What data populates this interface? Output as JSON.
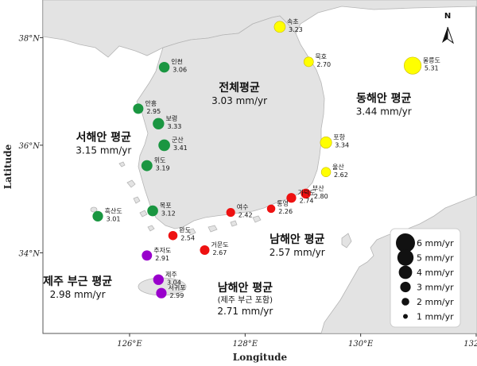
{
  "chart_data": {
    "type": "map",
    "xlabel": "Longitude",
    "ylabel": "Latitude",
    "x_range": [
      124.5,
      132.0
    ],
    "y_range": [
      32.5,
      38.7
    ],
    "x_ticks": [
      {
        "value": 126,
        "label": "126°E"
      },
      {
        "value": 128,
        "label": "128°E"
      },
      {
        "value": 130,
        "label": "130°E"
      },
      {
        "value": 132,
        "label": "132°E"
      }
    ],
    "y_ticks": [
      {
        "value": 38,
        "label": "38°N"
      },
      {
        "value": 36,
        "label": "36°N"
      },
      {
        "value": 34,
        "label": "34°N"
      }
    ],
    "north_label": "N",
    "colors": {
      "west": "#1a9641",
      "east": "#ffff00",
      "south": "#ee1111",
      "jeju": "#9900cc",
      "land": "#e3e3e3",
      "sea": "#ffffff"
    },
    "stations": [
      {
        "name": "속초",
        "value": "3.23",
        "lon": 128.6,
        "lat": 38.2,
        "region": "east"
      },
      {
        "name": "묵호",
        "value": "2.70",
        "lon": 129.1,
        "lat": 37.55,
        "region": "east"
      },
      {
        "name": "울릉도",
        "value": "5.31",
        "lon": 130.9,
        "lat": 37.48,
        "region": "east"
      },
      {
        "name": "포항",
        "value": "3.34",
        "lon": 129.4,
        "lat": 36.05,
        "region": "east"
      },
      {
        "name": "울산",
        "value": "2.62",
        "lon": 129.4,
        "lat": 35.5,
        "region": "east"
      },
      {
        "name": "인천",
        "value": "3.06",
        "lon": 126.6,
        "lat": 37.45,
        "region": "west"
      },
      {
        "name": "안흥",
        "value": "2.95",
        "lon": 126.15,
        "lat": 36.68,
        "region": "west"
      },
      {
        "name": "보령",
        "value": "3.33",
        "lon": 126.5,
        "lat": 36.4,
        "region": "west"
      },
      {
        "name": "군산",
        "value": "3.41",
        "lon": 126.6,
        "lat": 36.0,
        "region": "west"
      },
      {
        "name": "위도",
        "value": "3.19",
        "lon": 126.3,
        "lat": 35.62,
        "region": "west"
      },
      {
        "name": "흑산도",
        "value": "3.01",
        "lon": 125.45,
        "lat": 34.68,
        "region": "west"
      },
      {
        "name": "목포",
        "value": "3.12",
        "lon": 126.4,
        "lat": 34.78,
        "region": "west"
      },
      {
        "name": "부산",
        "value": "2.80",
        "lon": 129.05,
        "lat": 35.1,
        "region": "south"
      },
      {
        "name": "가덕도",
        "value": "2.74",
        "lon": 128.8,
        "lat": 35.02,
        "region": "south"
      },
      {
        "name": "통영",
        "value": "2.26",
        "lon": 128.45,
        "lat": 34.82,
        "region": "south"
      },
      {
        "name": "여수",
        "value": "2.42",
        "lon": 127.75,
        "lat": 34.75,
        "region": "south"
      },
      {
        "name": "완도",
        "value": "2.54",
        "lon": 126.75,
        "lat": 34.32,
        "region": "south"
      },
      {
        "name": "거문도",
        "value": "2.67",
        "lon": 127.3,
        "lat": 34.05,
        "region": "south"
      },
      {
        "name": "추자도",
        "value": "2.91",
        "lon": 126.3,
        "lat": 33.95,
        "region": "jeju"
      },
      {
        "name": "제주",
        "value": "3.04",
        "lon": 126.5,
        "lat": 33.5,
        "region": "jeju"
      },
      {
        "name": "서귀포",
        "value": "2.99",
        "lon": 126.55,
        "lat": 33.25,
        "region": "jeju"
      }
    ],
    "regions": [
      {
        "title": "전체평균",
        "value": "3.03 mm/yr",
        "lon": 127.9,
        "lat": 37.0
      },
      {
        "title": "서해안 평균",
        "value": "3.15 mm/yr",
        "lon": 125.55,
        "lat": 36.08
      },
      {
        "title": "동해안 평균",
        "value": "3.44 mm/yr",
        "lon": 130.4,
        "lat": 36.8
      },
      {
        "title": "남해안 평균",
        "value": "2.57 mm/yr",
        "lon": 128.9,
        "lat": 34.18
      },
      {
        "title": "제주 부근 평균",
        "value": "2.98 mm/yr",
        "lon": 125.1,
        "lat": 33.4
      },
      {
        "title": "남해안 평균",
        "sub": "(제주 부근 포함)",
        "value": "2.71 mm/yr",
        "lon": 128.0,
        "lat": 33.28
      }
    ],
    "legend": [
      {
        "label": "6 mm/yr",
        "value": 6
      },
      {
        "label": "5 mm/yr",
        "value": 5
      },
      {
        "label": "4 mm/yr",
        "value": 4
      },
      {
        "label": "3 mm/yr",
        "value": 3
      },
      {
        "label": "2 mm/yr",
        "value": 2
      },
      {
        "label": "1 mm/yr",
        "value": 1
      }
    ]
  }
}
